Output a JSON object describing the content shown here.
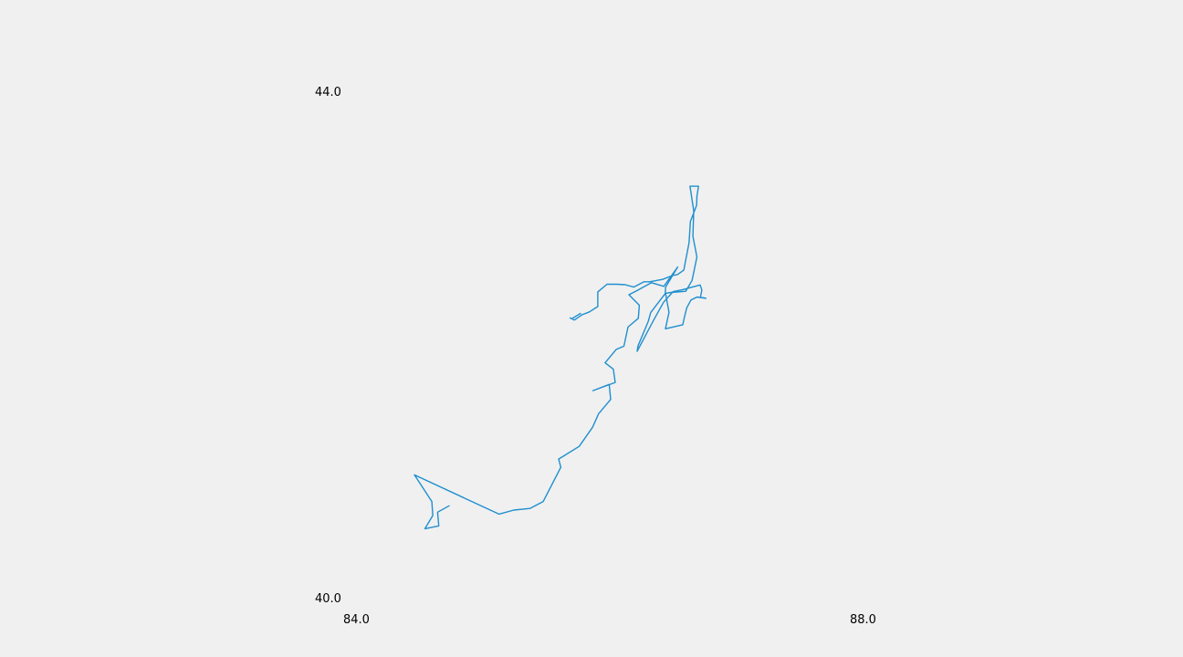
{
  "chart_data": {
    "type": "line",
    "title": "",
    "xlabel": "",
    "ylabel": "",
    "xlim": [
      84.0,
      88.0
    ],
    "ylim": [
      40.0,
      44.0
    ],
    "x_ticks": [
      "84.0",
      "88.0"
    ],
    "y_ticks": [
      "44.0",
      "40.0"
    ],
    "grid": false,
    "legend": "none",
    "colors": {
      "background": "#f0f0f0",
      "line": "#1f8fcf",
      "text": "#000000"
    },
    "series": [
      {
        "points": [
          [
            84.735,
            40.726
          ],
          [
            84.644,
            40.675
          ],
          [
            84.654,
            40.567
          ],
          [
            84.544,
            40.545
          ],
          [
            84.606,
            40.649
          ],
          [
            84.599,
            40.76
          ],
          [
            84.461,
            40.97
          ],
          [
            85.129,
            40.66
          ],
          [
            85.246,
            40.692
          ],
          [
            85.373,
            40.705
          ],
          [
            85.478,
            40.76
          ],
          [
            85.617,
            41.03
          ],
          [
            85.6,
            41.095
          ],
          [
            85.762,
            41.195
          ],
          [
            85.868,
            41.346
          ],
          [
            85.916,
            41.453
          ],
          [
            86.011,
            41.566
          ],
          [
            85.999,
            41.684
          ],
          [
            85.871,
            41.635
          ],
          [
            86.047,
            41.7
          ],
          [
            86.032,
            41.805
          ],
          [
            85.967,
            41.855
          ],
          [
            86.055,
            41.961
          ],
          [
            86.115,
            41.986
          ],
          [
            86.148,
            42.138
          ],
          [
            86.229,
            42.207
          ],
          [
            86.237,
            42.31
          ],
          [
            86.155,
            42.393
          ],
          [
            86.215,
            42.424
          ],
          [
            86.333,
            42.488
          ],
          [
            86.43,
            42.459
          ],
          [
            86.54,
            42.612
          ],
          [
            86.445,
            42.453
          ],
          [
            86.442,
            42.402
          ],
          [
            86.327,
            42.253
          ],
          [
            86.308,
            42.183
          ],
          [
            86.226,
            41.988
          ],
          [
            86.22,
            41.946
          ],
          [
            86.351,
            42.194
          ],
          [
            86.429,
            42.334
          ],
          [
            86.504,
            42.417
          ],
          [
            86.576,
            42.432
          ],
          [
            86.717,
            42.47
          ],
          [
            86.731,
            42.43
          ],
          [
            86.72,
            42.374
          ],
          [
            86.763,
            42.365
          ],
          [
            86.693,
            42.375
          ],
          [
            86.645,
            42.352
          ],
          [
            86.611,
            42.289
          ],
          [
            86.592,
            42.21
          ],
          [
            86.58,
            42.156
          ],
          [
            86.443,
            42.124
          ],
          [
            86.471,
            42.254
          ],
          [
            86.444,
            42.404
          ],
          [
            86.487,
            42.411
          ],
          [
            86.604,
            42.42
          ],
          [
            86.654,
            42.507
          ],
          [
            86.692,
            42.691
          ],
          [
            86.66,
            42.854
          ],
          [
            86.667,
            43.055
          ],
          [
            86.637,
            43.25
          ],
          [
            86.692,
            43.25
          ],
          [
            86.704,
            43.25
          ],
          [
            86.692,
            43.17
          ],
          [
            86.69,
            43.1
          ],
          [
            86.64,
            42.97
          ],
          [
            86.63,
            42.804
          ],
          [
            86.588,
            42.587
          ],
          [
            86.538,
            42.552
          ],
          [
            86.498,
            42.544
          ],
          [
            86.42,
            42.514
          ],
          [
            86.318,
            42.495
          ],
          [
            86.274,
            42.495
          ],
          [
            86.193,
            42.453
          ],
          [
            86.125,
            42.472
          ],
          [
            86.06,
            42.476
          ],
          [
            85.982,
            42.476
          ],
          [
            85.909,
            42.415
          ],
          [
            85.909,
            42.3
          ],
          [
            85.843,
            42.257
          ],
          [
            85.784,
            42.234
          ],
          [
            85.725,
            42.193
          ],
          [
            85.691,
            42.209
          ],
          [
            85.704,
            42.203
          ],
          [
            85.772,
            42.245
          ]
        ]
      }
    ]
  }
}
